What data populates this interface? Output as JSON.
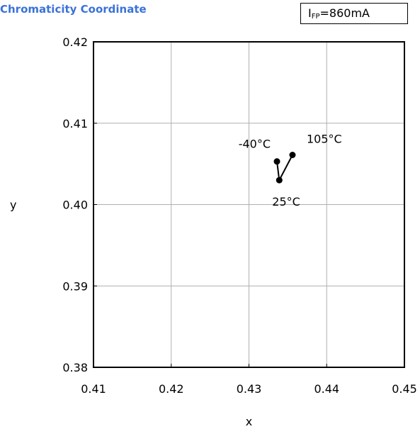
{
  "chart_data": {
    "type": "line",
    "title": "Chromaticity Coordinate",
    "condition": {
      "prefix": "I",
      "subscript": "FP",
      "suffix": "=860mA"
    },
    "xlabel": "x",
    "ylabel": "y",
    "xlim": [
      0.41,
      0.45
    ],
    "ylim": [
      0.38,
      0.42
    ],
    "xticks": [
      0.41,
      0.42,
      0.43,
      0.44,
      0.45
    ],
    "yticks": [
      0.38,
      0.39,
      0.4,
      0.41,
      0.42
    ],
    "xtick_labels": [
      "0.41",
      "0.42",
      "0.43",
      "0.44",
      "0.45"
    ],
    "ytick_labels": [
      "0.38",
      "0.39",
      "0.40",
      "0.41",
      "0.42"
    ],
    "grid": true,
    "accent_color": "#3a72d8",
    "series": [
      {
        "points": [
          {
            "label": "-40°C",
            "x": 0.4336,
            "y": 0.4053
          },
          {
            "label": "25°C",
            "x": 0.4339,
            "y": 0.403
          },
          {
            "label": "105°C",
            "x": 0.4356,
            "y": 0.4061
          }
        ]
      }
    ]
  }
}
